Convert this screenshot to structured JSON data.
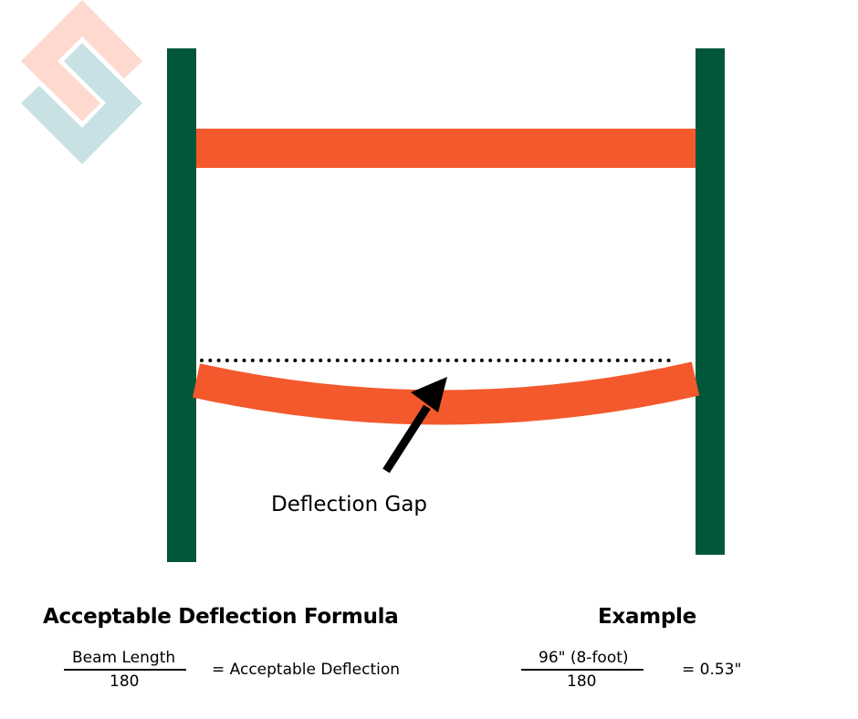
{
  "colors": {
    "upright": "#02573a",
    "beam": "#f3592c",
    "logo_pink": "#fdd9cf",
    "logo_blue": "#c8e1e4"
  },
  "logo": {
    "icon": "interlocking-s-logo"
  },
  "diagram": {
    "label": "Deflection Gap"
  },
  "formula": {
    "title": "Acceptable Deflection Formula",
    "numerator": "Beam Length",
    "denominator": "180",
    "result": "= Acceptable Deflection"
  },
  "example": {
    "title": "Example",
    "numerator": "96\" (8-foot)",
    "denominator": "180",
    "result": "= 0.53\""
  }
}
